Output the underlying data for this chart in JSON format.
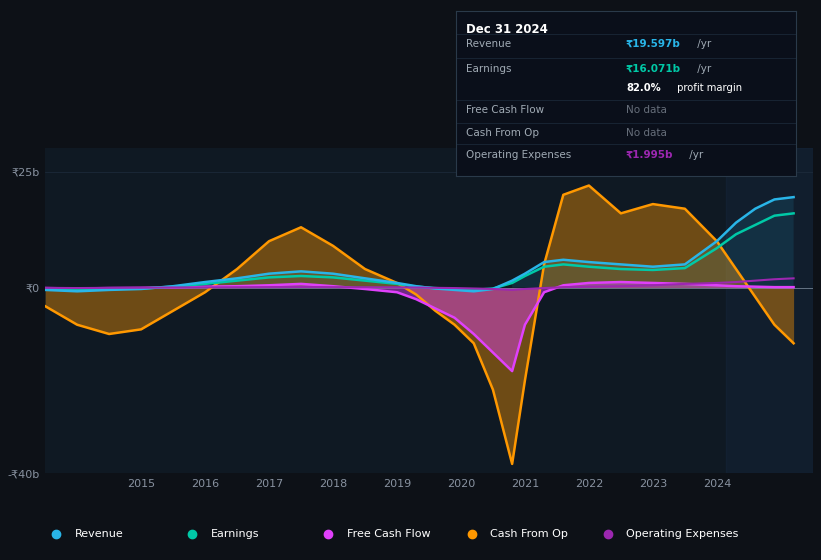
{
  "bg_color": "#0d1117",
  "plot_bg_color": "#0f1923",
  "grid_color": "#1e2d3d",
  "zero_line_color": "#7a8a9a",
  "ylim": [
    -40,
    30
  ],
  "xlim": [
    2013.5,
    2025.5
  ],
  "yticks": [
    -40,
    0,
    25
  ],
  "ytick_labels": [
    "-₹40b",
    "₹0",
    "₹25b"
  ],
  "xticks": [
    2015,
    2016,
    2017,
    2018,
    2019,
    2020,
    2021,
    2022,
    2023,
    2024
  ],
  "x": [
    2013.5,
    2014.0,
    2014.5,
    2015.0,
    2015.5,
    2016.0,
    2016.5,
    2017.0,
    2017.5,
    2018.0,
    2018.5,
    2019.0,
    2019.3,
    2019.6,
    2019.9,
    2020.2,
    2020.5,
    2020.8,
    2021.0,
    2021.3,
    2021.6,
    2022.0,
    2022.5,
    2023.0,
    2023.5,
    2024.0,
    2024.3,
    2024.6,
    2024.9,
    2025.2
  ],
  "revenue": [
    -0.5,
    -0.8,
    -0.5,
    -0.3,
    0.3,
    1.2,
    2.0,
    3.0,
    3.5,
    3.0,
    2.0,
    1.0,
    0.3,
    -0.2,
    -0.5,
    -0.8,
    -0.3,
    1.5,
    3.0,
    5.5,
    6.0,
    5.5,
    5.0,
    4.5,
    5.0,
    10.0,
    14.0,
    17.0,
    19.0,
    19.5
  ],
  "earnings": [
    -0.3,
    -0.5,
    -0.3,
    -0.2,
    0.2,
    0.8,
    1.5,
    2.2,
    2.5,
    2.2,
    1.5,
    0.8,
    0.2,
    -0.1,
    -0.3,
    -0.5,
    -0.2,
    1.0,
    2.5,
    4.5,
    5.0,
    4.5,
    4.0,
    3.8,
    4.2,
    8.5,
    11.5,
    13.5,
    15.5,
    16.0
  ],
  "free_cash_flow": [
    -0.1,
    -0.2,
    -0.1,
    -0.05,
    0.05,
    0.2,
    0.3,
    0.5,
    0.8,
    0.3,
    -0.3,
    -1.0,
    -2.5,
    -4.5,
    -6.5,
    -10.0,
    -14.0,
    -18.0,
    -8.0,
    -1.0,
    0.5,
    1.0,
    1.2,
    1.0,
    0.8,
    0.5,
    0.3,
    0.2,
    0.1,
    0.1
  ],
  "cash_from_op": [
    -4.0,
    -8.0,
    -10.0,
    -9.0,
    -5.0,
    -1.0,
    4.0,
    10.0,
    13.0,
    9.0,
    4.0,
    1.0,
    -1.5,
    -5.0,
    -8.0,
    -12.0,
    -22.0,
    -38.0,
    -20.0,
    5.0,
    20.0,
    22.0,
    16.0,
    18.0,
    17.0,
    10.0,
    4.0,
    -2.0,
    -8.0,
    -12.0
  ],
  "op_expenses": [
    -0.05,
    -0.1,
    -0.05,
    -0.03,
    0.03,
    0.05,
    0.08,
    0.1,
    0.12,
    0.1,
    0.08,
    0.05,
    0.02,
    -0.05,
    -0.1,
    -0.2,
    -0.3,
    -0.5,
    -0.3,
    -0.1,
    0.1,
    0.2,
    0.3,
    0.5,
    0.8,
    1.0,
    1.2,
    1.5,
    1.8,
    1.995
  ],
  "revenue_color": "#29b5e8",
  "earnings_color": "#00c9a7",
  "fcf_color": "#e040fb",
  "cfo_color": "#ff9800",
  "opex_color": "#9c27b0",
  "tooltip": {
    "date": "Dec 31 2024",
    "revenue_label": "Revenue",
    "revenue_val": "₹19.597b",
    "revenue_unit": " /yr",
    "earnings_label": "Earnings",
    "earnings_val": "₹16.071b",
    "earnings_unit": " /yr",
    "margin_val": "82.0%",
    "margin_text": " profit margin",
    "fcf_label": "Free Cash Flow",
    "fcf_val": "No data",
    "cfo_label": "Cash From Op",
    "cfo_val": "No data",
    "opex_label": "Operating Expenses",
    "opex_val": "₹1.995b",
    "opex_unit": " /yr"
  },
  "legend_items": [
    "Revenue",
    "Earnings",
    "Free Cash Flow",
    "Cash From Op",
    "Operating Expenses"
  ],
  "legend_colors": [
    "#29b5e8",
    "#00c9a7",
    "#e040fb",
    "#ff9800",
    "#9c27b0"
  ]
}
